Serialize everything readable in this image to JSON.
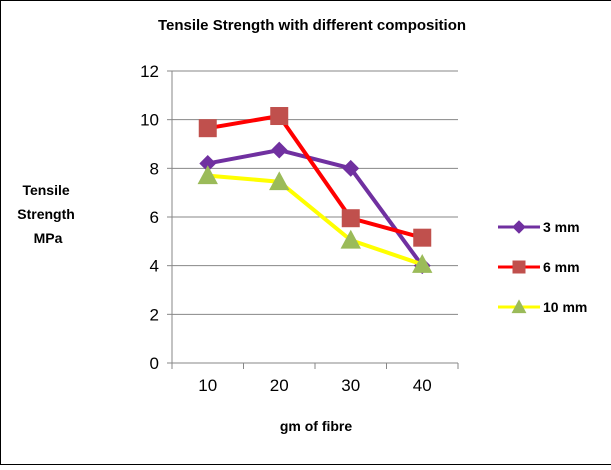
{
  "chart_data": {
    "type": "line",
    "title": "Tensile Strength with different composition",
    "xlabel": "gm of fibre",
    "ylabel_lines": [
      "Tensile",
      "Strength",
      "MPa"
    ],
    "categories": [
      "10",
      "20",
      "30",
      "40"
    ],
    "ylim": [
      0,
      12
    ],
    "yticks": [
      "0",
      "2",
      "4",
      "6",
      "8",
      "10",
      "12"
    ],
    "grid": true,
    "legend_position": "right",
    "series": [
      {
        "name": "3 mm",
        "values": [
          8.2,
          8.75,
          8.0,
          4.0
        ],
        "color": "#7030a0",
        "marker": "diamond"
      },
      {
        "name": "6 mm",
        "values": [
          9.65,
          10.15,
          5.95,
          5.15
        ],
        "color": "#ff0000",
        "marker": "square"
      },
      {
        "name": "10 mm",
        "values": [
          7.7,
          7.45,
          5.05,
          4.05
        ],
        "color": "#ffff00",
        "marker": "triangle"
      }
    ],
    "colors": {
      "border": "#000000",
      "grid": "#878787",
      "triangle_marker": "#9bbb59"
    }
  }
}
